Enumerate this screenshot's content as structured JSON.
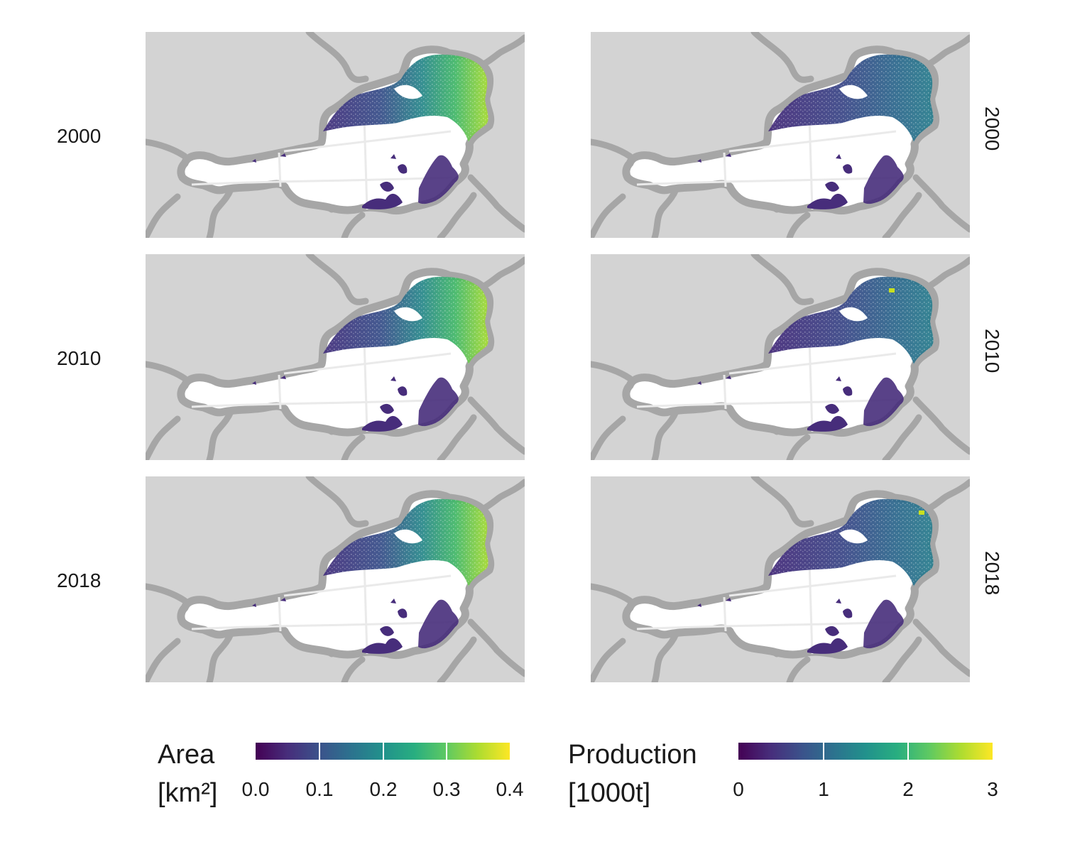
{
  "rows": [
    {
      "year": "2000"
    },
    {
      "year": "2010"
    },
    {
      "year": "2018"
    }
  ],
  "maps": {
    "panel_bg": "#d3d3d3",
    "border_color": "#a6a6a6",
    "country_fill": "#ffffff",
    "left_column_variable": "Area",
    "right_column_variable": "Production"
  },
  "legend_area": {
    "title_line1": "Area",
    "title_line2": "[km²]",
    "ticks": [
      "0.0",
      "0.1",
      "0.2",
      "0.3",
      "0.4"
    ],
    "range": [
      0,
      0.4
    ],
    "colormap": "viridis"
  },
  "legend_production": {
    "title_line1": "Production",
    "title_line2": "[1000t]",
    "ticks": [
      "0",
      "1",
      "2",
      "3"
    ],
    "range": [
      0,
      3
    ],
    "colormap": "viridis"
  },
  "viridis_stops": [
    "#440154",
    "#472d7b",
    "#3b528b",
    "#2c728e",
    "#21918c",
    "#28ae80",
    "#5ec962",
    "#addc30",
    "#fde725"
  ]
}
